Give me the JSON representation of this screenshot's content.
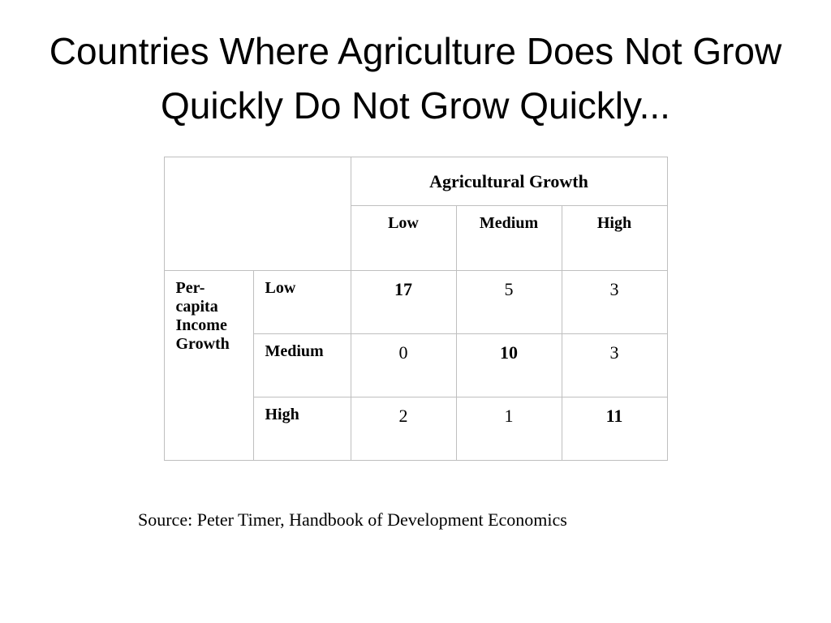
{
  "title": "Countries Where Agriculture Does Not Grow Quickly Do Not Grow Quickly...",
  "table": {
    "col_group_header": "Agricultural Growth",
    "col_headers": [
      "Low",
      "Medium",
      "High"
    ],
    "row_group_header": "Per-capita Income Growth",
    "row_headers": [
      "Low",
      "Medium",
      "High"
    ],
    "cells": [
      [
        {
          "v": "17",
          "bold": true
        },
        {
          "v": "5",
          "bold": false
        },
        {
          "v": "3",
          "bold": false
        }
      ],
      [
        {
          "v": "0",
          "bold": false
        },
        {
          "v": "10",
          "bold": true
        },
        {
          "v": "3",
          "bold": false
        }
      ],
      [
        {
          "v": "2",
          "bold": false
        },
        {
          "v": "1",
          "bold": false
        },
        {
          "v": "11",
          "bold": true
        }
      ]
    ]
  },
  "source": "Source:  Peter Timer, Handbook of Development Economics",
  "style": {
    "background_color": "#ffffff",
    "text_color": "#000000",
    "border_color": "#bfbfbf",
    "title_fontsize": 46,
    "table_header_fontsize": 22,
    "table_cell_fontsize": 22,
    "source_fontsize": 22,
    "title_font": "Arial",
    "body_font": "Times New Roman"
  }
}
